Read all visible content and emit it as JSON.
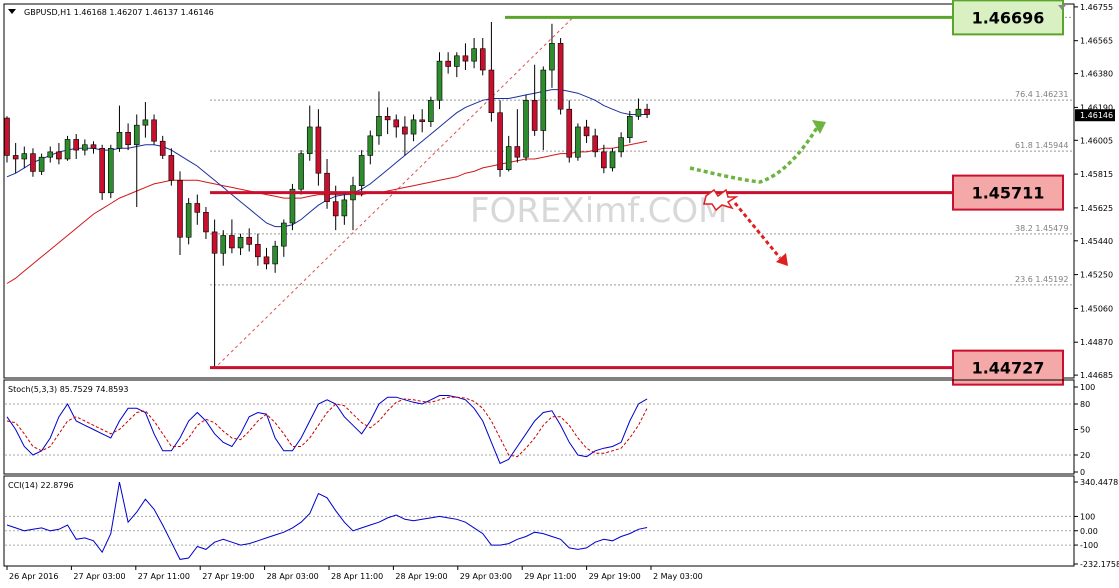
{
  "chart_data": [
    {
      "type": "candlestick",
      "title": "GBPUSD,H1  1.46168 1.46207 1.46137 1.46146",
      "current_price": "1.46146",
      "y_ticks": [
        "1.46755",
        "1.46565",
        "1.46380",
        "1.46190",
        "1.46005",
        "1.45815",
        "1.45625",
        "1.45440",
        "1.45250",
        "1.45060",
        "1.44870",
        "1.44685"
      ],
      "ylim": [
        1.4468,
        1.4676
      ],
      "x_ticks": [
        "26 Apr 2016",
        "27 Apr 03:00",
        "27 Apr 11:00",
        "27 Apr 19:00",
        "28 Apr 03:00",
        "28 Apr 11:00",
        "28 Apr 19:00",
        "29 Apr 03:00",
        "29 Apr 11:00",
        "29 Apr 19:00",
        "2 May 03:00"
      ],
      "levels": [
        {
          "name": "resistance",
          "value": "1.46696",
          "color": "#5aa52a",
          "fill": "#d9f0c2"
        },
        {
          "name": "support",
          "value": "1.45711",
          "color": "#c8102e",
          "fill": "#f4a8a8"
        },
        {
          "name": "swing-low",
          "value": "1.44727",
          "color": "#c8102e",
          "fill": "#f4a8a8"
        }
      ],
      "fibonacci": [
        {
          "label": "76.4  1.46231",
          "price": 1.46231
        },
        {
          "label": "61.8  1.45944",
          "price": 1.45944
        },
        {
          "label": "38.2  1.45479",
          "price": 1.45479
        },
        {
          "label": "23.6  1.45192",
          "price": 1.45192
        }
      ],
      "watermark": "FOREXimf.COM",
      "bull_color": "#2e8b2e",
      "bear_color": "#c8102e",
      "candles": [
        [
          1.4613,
          1.4614,
          1.4588,
          1.4592
        ],
        [
          1.4592,
          1.4599,
          1.4582,
          1.459
        ],
        [
          1.459,
          1.4597,
          1.4585,
          1.4593
        ],
        [
          1.4593,
          1.4596,
          1.458,
          1.4583
        ],
        [
          1.4583,
          1.4593,
          1.4581,
          1.4591
        ],
        [
          1.4591,
          1.4597,
          1.4588,
          1.4594
        ],
        [
          1.4594,
          1.4599,
          1.4587,
          1.459
        ],
        [
          1.459,
          1.4603,
          1.4589,
          1.4601
        ],
        [
          1.4601,
          1.4604,
          1.459,
          1.4595
        ],
        [
          1.4595,
          1.4601,
          1.4592,
          1.4598
        ],
        [
          1.4598,
          1.46,
          1.4593,
          1.4596
        ],
        [
          1.4596,
          1.4598,
          1.4567,
          1.4571
        ],
        [
          1.4571,
          1.4598,
          1.4568,
          1.4596
        ],
        [
          1.4596,
          1.462,
          1.4594,
          1.4605
        ],
        [
          1.4605,
          1.461,
          1.4595,
          1.4598
        ],
        [
          1.4598,
          1.4615,
          1.4563,
          1.4609
        ],
        [
          1.4609,
          1.4622,
          1.4602,
          1.4612
        ],
        [
          1.4612,
          1.4615,
          1.4598,
          1.46
        ],
        [
          1.46,
          1.4603,
          1.459,
          1.4592
        ],
        [
          1.4592,
          1.4596,
          1.4575,
          1.4578
        ],
        [
          1.4578,
          1.4583,
          1.4536,
          1.4546
        ],
        [
          1.4546,
          1.4568,
          1.4542,
          1.4565
        ],
        [
          1.4565,
          1.457,
          1.4553,
          1.456
        ],
        [
          1.456,
          1.4563,
          1.4545,
          1.4549
        ],
        [
          1.4549,
          1.4556,
          1.4472,
          1.4537
        ],
        [
          1.4537,
          1.455,
          1.453,
          1.4547
        ],
        [
          1.4547,
          1.4556,
          1.4537,
          1.454
        ],
        [
          1.454,
          1.4548,
          1.4536,
          1.4546
        ],
        [
          1.4546,
          1.4551,
          1.4538,
          1.4542
        ],
        [
          1.4542,
          1.4548,
          1.453,
          1.4535
        ],
        [
          1.4535,
          1.454,
          1.4528,
          1.4531
        ],
        [
          1.4531,
          1.4544,
          1.4526,
          1.4541
        ],
        [
          1.4541,
          1.4556,
          1.4535,
          1.4554
        ],
        [
          1.4554,
          1.4576,
          1.455,
          1.4573
        ],
        [
          1.4573,
          1.4595,
          1.457,
          1.4593
        ],
        [
          1.4593,
          1.462,
          1.4589,
          1.4608
        ],
        [
          1.4608,
          1.4618,
          1.4575,
          1.4582
        ],
        [
          1.4582,
          1.459,
          1.4562,
          1.4566
        ],
        [
          1.4566,
          1.4575,
          1.455,
          1.4558
        ],
        [
          1.4558,
          1.457,
          1.4553,
          1.4567
        ],
        [
          1.4567,
          1.458,
          1.455,
          1.4575
        ],
        [
          1.4575,
          1.4595,
          1.4569,
          1.4592
        ],
        [
          1.4592,
          1.4606,
          1.4587,
          1.4603
        ],
        [
          1.4603,
          1.4628,
          1.4598,
          1.4614
        ],
        [
          1.4614,
          1.4619,
          1.4604,
          1.4612
        ],
        [
          1.4612,
          1.4615,
          1.4602,
          1.4608
        ],
        [
          1.4608,
          1.4614,
          1.4592,
          1.4604
        ],
        [
          1.4604,
          1.4615,
          1.46,
          1.4612
        ],
        [
          1.4612,
          1.4618,
          1.4605,
          1.4611
        ],
        [
          1.4611,
          1.4625,
          1.4608,
          1.4623
        ],
        [
          1.4623,
          1.465,
          1.4618,
          1.4645
        ],
        [
          1.4645,
          1.465,
          1.4638,
          1.4642
        ],
        [
          1.4642,
          1.465,
          1.4636,
          1.4648
        ],
        [
          1.4648,
          1.4655,
          1.464,
          1.4645
        ],
        [
          1.4645,
          1.4658,
          1.4641,
          1.4652
        ],
        [
          1.4652,
          1.4658,
          1.4637,
          1.464
        ],
        [
          1.464,
          1.4667,
          1.4611,
          1.4616
        ],
        [
          1.4616,
          1.4623,
          1.458,
          1.4584
        ],
        [
          1.4584,
          1.4603,
          1.4583,
          1.4597
        ],
        [
          1.4597,
          1.4618,
          1.4588,
          1.4591
        ],
        [
          1.4591,
          1.4626,
          1.4589,
          1.4623
        ],
        [
          1.4623,
          1.4643,
          1.4603,
          1.4606
        ],
        [
          1.4606,
          1.4642,
          1.4595,
          1.464
        ],
        [
          1.464,
          1.4666,
          1.463,
          1.4655
        ],
        [
          1.4655,
          1.4658,
          1.4615,
          1.4618
        ],
        [
          1.4618,
          1.4623,
          1.4588,
          1.4591
        ],
        [
          1.4591,
          1.461,
          1.4589,
          1.4608
        ],
        [
          1.4608,
          1.4612,
          1.4599,
          1.4603
        ],
        [
          1.4603,
          1.4607,
          1.4591,
          1.4594
        ],
        [
          1.4594,
          1.4598,
          1.4582,
          1.4585
        ],
        [
          1.4585,
          1.4596,
          1.4583,
          1.4594
        ],
        [
          1.4594,
          1.4605,
          1.4591,
          1.4602
        ],
        [
          1.4602,
          1.4617,
          1.4599,
          1.4614
        ],
        [
          1.4614,
          1.4624,
          1.4612,
          1.4618
        ],
        [
          1.4618,
          1.4621,
          1.4613,
          1.4615
        ]
      ],
      "sma_fast": [
        1.458,
        1.4582,
        1.4585,
        1.4588,
        1.459,
        1.4592,
        1.4594,
        1.4595,
        1.4596,
        1.4596,
        1.4596,
        1.4595,
        1.4595,
        1.4596,
        1.4596,
        1.4597,
        1.4598,
        1.4598,
        1.4597,
        1.4595,
        1.4592,
        1.4589,
        1.4586,
        1.4582,
        1.4578,
        1.4574,
        1.457,
        1.4566,
        1.4562,
        1.4558,
        1.4554,
        1.4552,
        1.4552,
        1.4553,
        1.4556,
        1.456,
        1.4564,
        1.4567,
        1.4569,
        1.457,
        1.4571,
        1.4573,
        1.4576,
        1.458,
        1.4584,
        1.4588,
        1.4592,
        1.4596,
        1.46,
        1.4604,
        1.4608,
        1.4612,
        1.4616,
        1.4619,
        1.4621,
        1.4623,
        1.4624,
        1.4624,
        1.4624,
        1.4625,
        1.4626,
        1.4627,
        1.4628,
        1.4629,
        1.4629,
        1.4628,
        1.4627,
        1.4625,
        1.4623,
        1.462,
        1.4618,
        1.4616,
        1.4615,
        1.4615,
        1.4615
      ],
      "sma_slow": [
        1.452,
        1.4523,
        1.4527,
        1.4531,
        1.4535,
        1.4539,
        1.4543,
        1.4547,
        1.4551,
        1.4555,
        1.4559,
        1.4562,
        1.4565,
        1.4568,
        1.457,
        1.4572,
        1.4574,
        1.4576,
        1.4577,
        1.4578,
        1.4578,
        1.4578,
        1.4578,
        1.4577,
        1.4576,
        1.4575,
        1.4574,
        1.4573,
        1.4572,
        1.4571,
        1.457,
        1.4569,
        1.4568,
        1.4568,
        1.4568,
        1.4569,
        1.457,
        1.457,
        1.457,
        1.457,
        1.457,
        1.457,
        1.4571,
        1.4571,
        1.4572,
        1.4573,
        1.4574,
        1.4575,
        1.4576,
        1.4577,
        1.4578,
        1.4579,
        1.458,
        1.4582,
        1.4583,
        1.4585,
        1.4586,
        1.4587,
        1.4588,
        1.4589,
        1.459,
        1.459,
        1.4591,
        1.4592,
        1.4593,
        1.4593,
        1.4594,
        1.4594,
        1.4595,
        1.4596,
        1.4596,
        1.4597,
        1.4598,
        1.4599,
        1.46
      ]
    },
    {
      "type": "line",
      "title": "Stoch(5,3,3) 85.7529 74.8593",
      "y_ticks": [
        "100",
        "80",
        "50",
        "20",
        "0"
      ],
      "ylim": [
        0,
        100
      ],
      "series": [
        {
          "name": "main",
          "color": "#0000cc",
          "values": [
            65,
            50,
            30,
            20,
            25,
            40,
            65,
            80,
            60,
            55,
            50,
            45,
            40,
            60,
            75,
            75,
            70,
            45,
            25,
            25,
            40,
            60,
            70,
            60,
            45,
            35,
            30,
            45,
            65,
            70,
            68,
            40,
            25,
            25,
            40,
            60,
            80,
            85,
            80,
            65,
            55,
            45,
            60,
            80,
            88,
            88,
            85,
            82,
            80,
            85,
            90,
            90,
            88,
            85,
            75,
            60,
            35,
            10,
            15,
            30,
            45,
            60,
            70,
            72,
            55,
            35,
            20,
            18,
            25,
            28,
            30,
            35,
            60,
            80,
            86
          ]
        },
        {
          "name": "signal",
          "color": "#cc0000",
          "dash": true,
          "values": [
            60,
            58,
            45,
            30,
            25,
            30,
            45,
            60,
            65,
            60,
            55,
            50,
            45,
            50,
            60,
            70,
            72,
            60,
            45,
            30,
            30,
            40,
            55,
            62,
            58,
            48,
            40,
            38,
            48,
            60,
            68,
            58,
            45,
            30,
            30,
            40,
            55,
            70,
            80,
            78,
            68,
            58,
            52,
            60,
            72,
            82,
            86,
            85,
            83,
            82,
            85,
            88,
            88,
            87,
            83,
            75,
            60,
            40,
            20,
            18,
            28,
            40,
            55,
            65,
            65,
            55,
            40,
            28,
            22,
            22,
            25,
            28,
            40,
            55,
            75
          ]
        }
      ]
    },
    {
      "type": "line",
      "title": "CCI(14) 22.8796",
      "y_ticks": [
        "340.4478",
        "100",
        "0.00",
        "-100",
        "-232.1758"
      ],
      "ylim": [
        -232.1758,
        340.4478
      ],
      "series": [
        {
          "name": "main",
          "color": "#0000cc",
          "values": [
            40,
            20,
            0,
            10,
            20,
            0,
            10,
            40,
            -60,
            -50,
            -70,
            -150,
            -20,
            340,
            60,
            130,
            220,
            150,
            40,
            -80,
            -200,
            -190,
            -110,
            -130,
            -80,
            -60,
            -80,
            -100,
            -90,
            -70,
            -50,
            -30,
            -10,
            20,
            60,
            120,
            260,
            230,
            140,
            60,
            0,
            20,
            40,
            60,
            90,
            110,
            80,
            70,
            80,
            90,
            100,
            90,
            80,
            60,
            20,
            -20,
            -100,
            -100,
            -90,
            -60,
            -40,
            -10,
            -20,
            -40,
            -60,
            -120,
            -130,
            -120,
            -80,
            -60,
            -70,
            -40,
            -20,
            10,
            22.8796
          ]
        }
      ]
    }
  ]
}
